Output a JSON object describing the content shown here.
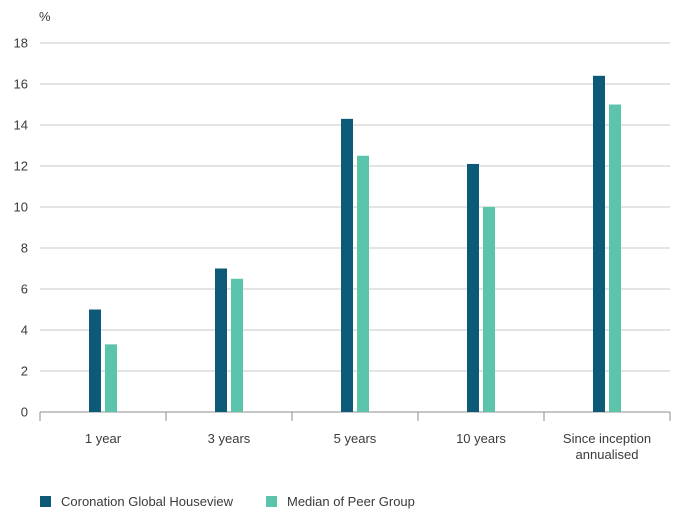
{
  "chart_data": {
    "type": "bar",
    "ylabel": "%",
    "ylim": [
      0,
      18
    ],
    "yticks": [
      0,
      2,
      4,
      6,
      8,
      10,
      12,
      14,
      16,
      18
    ],
    "grid": true,
    "legend_position": "bottom-left",
    "categories": [
      [
        "1 year"
      ],
      [
        "3 years"
      ],
      [
        "5 years"
      ],
      [
        "10 years"
      ],
      [
        "Since inception",
        "annualised"
      ]
    ],
    "series": [
      {
        "name": "Coronation Global Houseview",
        "color": "#0d5a78",
        "values": [
          5.0,
          7.0,
          14.3,
          12.1,
          16.4
        ]
      },
      {
        "name": "Median of Peer Group",
        "color": "#5cc4aa",
        "values": [
          3.3,
          6.5,
          12.5,
          10.0,
          15.0
        ]
      }
    ]
  }
}
